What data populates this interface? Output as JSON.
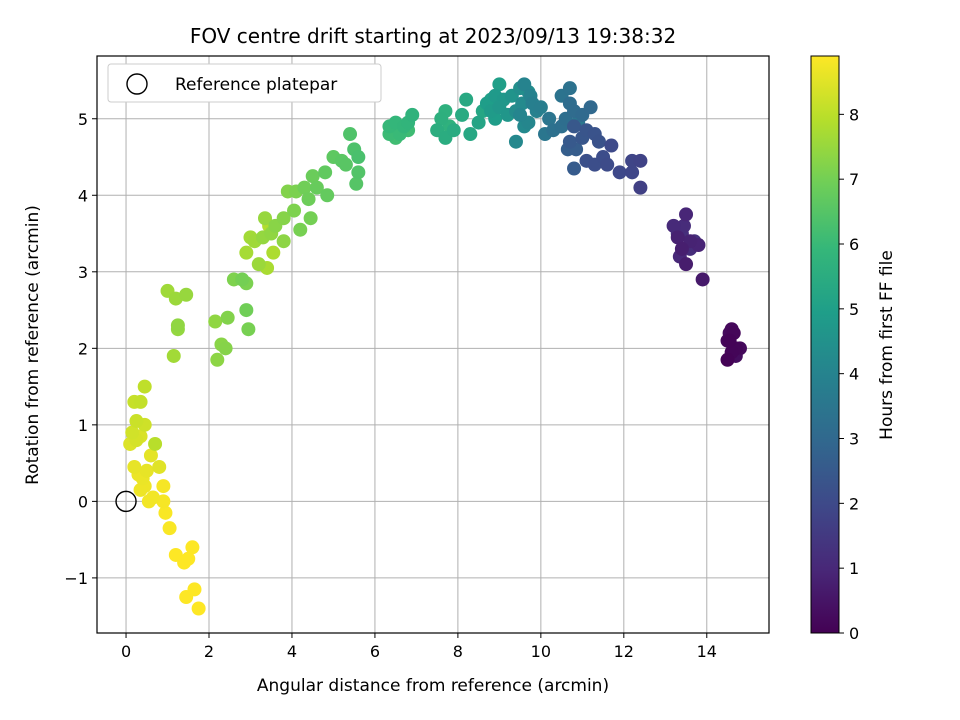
{
  "chart_data": {
    "type": "scatter",
    "title": "FOV centre drift starting at 2023/09/13 19:38:32",
    "xlabel": "Angular distance from reference (arcmin)",
    "ylabel": "Rotation from reference (arcmin)",
    "xlim": [
      -0.7,
      15.5
    ],
    "ylim": [
      -1.72,
      5.82
    ],
    "xticks": [
      0,
      2,
      4,
      6,
      8,
      10,
      12,
      14
    ],
    "yticks": [
      -1,
      0,
      1,
      2,
      3,
      4,
      5
    ],
    "grid": true,
    "legend": {
      "position": "upper-left",
      "entries": [
        "Reference platepar"
      ]
    },
    "reference_point": {
      "x": 0,
      "y": 0,
      "label": "Reference platepar"
    },
    "colorbar": {
      "label": "Hours from first FF file",
      "colormap": "viridis",
      "range": [
        0,
        8.9
      ],
      "ticks": [
        0,
        1,
        2,
        3,
        4,
        5,
        6,
        7,
        8
      ]
    },
    "colormap_stops": [
      "#440154",
      "#482878",
      "#3e4989",
      "#31688e",
      "#26828e",
      "#1f9e89",
      "#35b779",
      "#6ece58",
      "#b5de2b",
      "#fde725"
    ],
    "series": [
      {
        "points": [
          [
            14.5,
            1.85,
            0.05
          ],
          [
            14.6,
            1.95,
            0.1
          ],
          [
            14.7,
            2.0,
            0.12
          ],
          [
            14.65,
            2.2,
            0.15
          ],
          [
            14.55,
            2.1,
            0.08
          ],
          [
            14.5,
            2.1,
            0.18
          ],
          [
            14.6,
            2.25,
            0.2
          ],
          [
            14.8,
            2.0,
            0.22
          ],
          [
            14.55,
            2.2,
            0.25
          ],
          [
            14.7,
            1.9,
            0.3
          ],
          [
            13.9,
            2.9,
            0.6
          ],
          [
            13.5,
            3.1,
            0.7
          ],
          [
            13.4,
            3.3,
            0.75
          ],
          [
            13.3,
            3.45,
            0.8
          ],
          [
            13.6,
            3.4,
            0.85
          ],
          [
            13.8,
            3.35,
            0.9
          ],
          [
            13.5,
            3.75,
            0.95
          ],
          [
            13.35,
            3.2,
            1.0
          ],
          [
            13.2,
            3.6,
            1.05
          ],
          [
            13.45,
            3.6,
            1.1
          ],
          [
            13.6,
            3.3,
            1.15
          ],
          [
            13.4,
            3.5,
            1.2
          ],
          [
            13.7,
            3.4,
            1.25
          ],
          [
            13.3,
            3.5,
            1.3
          ],
          [
            12.4,
            4.1,
            1.7
          ],
          [
            12.4,
            4.45,
            1.8
          ],
          [
            12.2,
            4.45,
            1.85
          ],
          [
            12.2,
            4.3,
            1.9
          ],
          [
            11.9,
            4.3,
            1.95
          ],
          [
            11.7,
            4.65,
            2.0
          ],
          [
            11.6,
            4.4,
            2.05
          ],
          [
            11.5,
            4.5,
            2.1
          ],
          [
            11.3,
            4.4,
            2.15
          ],
          [
            11.1,
            4.45,
            2.2
          ],
          [
            11.4,
            4.7,
            2.25
          ],
          [
            11.3,
            4.8,
            2.3
          ],
          [
            11.1,
            4.85,
            2.35
          ],
          [
            11.0,
            4.75,
            2.4
          ],
          [
            10.8,
            4.9,
            2.45
          ],
          [
            10.7,
            4.7,
            2.5
          ],
          [
            10.8,
            4.35,
            2.55
          ],
          [
            10.85,
            4.6,
            2.6
          ],
          [
            10.65,
            4.6,
            2.65
          ],
          [
            11.2,
            5.15,
            3.0
          ],
          [
            11.0,
            5.05,
            3.05
          ],
          [
            10.8,
            5.1,
            3.1
          ],
          [
            10.7,
            5.2,
            3.15
          ],
          [
            10.6,
            5.0,
            3.2
          ],
          [
            10.5,
            4.9,
            3.25
          ],
          [
            10.3,
            4.85,
            3.3
          ],
          [
            10.7,
            5.4,
            3.35
          ],
          [
            10.5,
            5.3,
            3.4
          ],
          [
            10.2,
            5.0,
            3.45
          ],
          [
            10.1,
            4.8,
            3.5
          ],
          [
            10.9,
            4.95,
            3.55
          ],
          [
            10.0,
            5.15,
            3.8
          ],
          [
            9.8,
            5.2,
            3.85
          ],
          [
            9.9,
            5.1,
            3.9
          ],
          [
            9.75,
            5.3,
            3.95
          ],
          [
            9.6,
            5.45,
            4.0
          ],
          [
            9.5,
            5.05,
            4.05
          ],
          [
            9.7,
            4.95,
            4.1
          ],
          [
            9.4,
            4.7,
            4.15
          ],
          [
            9.6,
            4.9,
            4.2
          ],
          [
            9.55,
            5.2,
            4.25
          ],
          [
            9.4,
            5.1,
            4.3
          ],
          [
            9.7,
            5.35,
            4.35
          ],
          [
            9.5,
            5.4,
            4.4
          ],
          [
            9.3,
            5.3,
            4.6
          ],
          [
            9.2,
            5.05,
            4.65
          ],
          [
            9.0,
            5.15,
            4.7
          ],
          [
            9.1,
            5.25,
            4.75
          ],
          [
            8.9,
            5.3,
            4.8
          ],
          [
            8.8,
            5.1,
            4.85
          ],
          [
            8.9,
            5.0,
            4.9
          ],
          [
            8.7,
            5.2,
            4.95
          ],
          [
            9.0,
            5.45,
            5.0
          ],
          [
            8.8,
            5.25,
            5.05
          ],
          [
            8.5,
            4.95,
            5.2
          ],
          [
            8.6,
            5.1,
            5.25
          ],
          [
            8.3,
            4.8,
            5.3
          ],
          [
            8.2,
            5.25,
            5.35
          ],
          [
            8.1,
            5.05,
            5.4
          ],
          [
            7.9,
            4.85,
            5.45
          ],
          [
            7.7,
            4.75,
            5.5
          ],
          [
            7.5,
            4.85,
            5.55
          ],
          [
            7.6,
            5.0,
            5.6
          ],
          [
            7.7,
            5.1,
            5.65
          ],
          [
            7.8,
            4.9,
            5.7
          ],
          [
            6.9,
            5.05,
            5.75
          ],
          [
            6.8,
            4.95,
            5.8
          ],
          [
            6.7,
            4.9,
            5.85
          ],
          [
            6.5,
            4.95,
            5.9
          ],
          [
            6.35,
            4.9,
            5.95
          ],
          [
            6.6,
            4.8,
            6.0
          ],
          [
            6.35,
            4.8,
            6.05
          ],
          [
            6.8,
            4.85,
            6.1
          ],
          [
            6.5,
            4.75,
            6.15
          ],
          [
            5.6,
            4.5,
            6.3
          ],
          [
            5.5,
            4.6,
            6.35
          ],
          [
            5.4,
            4.8,
            6.4
          ],
          [
            5.6,
            4.3,
            6.45
          ],
          [
            5.55,
            4.15,
            6.5
          ],
          [
            5.3,
            4.4,
            6.55
          ],
          [
            5.2,
            4.45,
            6.6
          ],
          [
            5.0,
            4.5,
            6.65
          ],
          [
            4.8,
            4.3,
            6.7
          ],
          [
            4.85,
            4.0,
            6.75
          ],
          [
            4.6,
            4.1,
            6.8
          ],
          [
            4.5,
            4.25,
            6.85
          ],
          [
            4.4,
            3.95,
            6.9
          ],
          [
            4.3,
            4.1,
            6.95
          ],
          [
            4.45,
            3.7,
            7.0
          ],
          [
            4.2,
            3.55,
            7.05
          ],
          [
            4.1,
            4.05,
            7.1
          ],
          [
            4.05,
            3.8,
            7.15
          ],
          [
            3.9,
            4.05,
            7.2
          ],
          [
            3.8,
            3.7,
            7.25
          ],
          [
            3.6,
            3.6,
            7.3
          ],
          [
            3.8,
            3.4,
            7.35
          ],
          [
            3.5,
            3.5,
            7.4
          ],
          [
            3.3,
            3.45,
            7.45
          ],
          [
            3.35,
            3.7,
            7.5
          ],
          [
            3.2,
            3.1,
            7.55
          ],
          [
            3.1,
            3.4,
            7.6
          ],
          [
            3.0,
            3.45,
            7.65
          ],
          [
            2.9,
            3.25,
            7.7
          ],
          [
            3.4,
            3.05,
            7.75
          ],
          [
            3.55,
            3.25,
            7.8
          ],
          [
            3.45,
            3.6,
            7.85
          ],
          [
            2.8,
            2.9,
            7.0
          ],
          [
            2.9,
            2.5,
            6.95
          ],
          [
            2.95,
            2.25,
            7.05
          ],
          [
            2.9,
            2.85,
            7.1
          ],
          [
            2.6,
            2.9,
            7.15
          ],
          [
            2.45,
            2.4,
            7.2
          ],
          [
            2.4,
            2.0,
            7.25
          ],
          [
            2.3,
            2.05,
            7.3
          ],
          [
            2.2,
            1.85,
            7.35
          ],
          [
            2.15,
            2.35,
            7.4
          ],
          [
            1.25,
            2.3,
            7.4
          ],
          [
            1.25,
            2.25,
            7.45
          ],
          [
            1.45,
            2.7,
            7.5
          ],
          [
            1.2,
            2.65,
            7.55
          ],
          [
            1.0,
            2.75,
            7.6
          ],
          [
            1.15,
            1.9,
            7.65
          ],
          [
            0.7,
            0.75,
            7.95
          ],
          [
            0.45,
            1.5,
            8.05
          ],
          [
            0.35,
            1.3,
            8.1
          ],
          [
            0.2,
            1.3,
            8.15
          ],
          [
            0.25,
            1.05,
            8.2
          ],
          [
            0.45,
            1.0,
            8.25
          ],
          [
            0.15,
            0.9,
            8.3
          ],
          [
            0.25,
            0.8,
            8.35
          ],
          [
            0.35,
            0.85,
            8.4
          ],
          [
            0.1,
            0.75,
            8.45
          ],
          [
            0.8,
            0.45,
            8.5
          ],
          [
            0.6,
            0.6,
            8.55
          ],
          [
            0.5,
            0.4,
            8.6
          ],
          [
            0.4,
            0.3,
            8.65
          ],
          [
            0.2,
            0.45,
            8.6
          ],
          [
            0.3,
            0.35,
            8.65
          ],
          [
            0.45,
            0.2,
            8.7
          ],
          [
            0.35,
            0.15,
            8.7
          ],
          [
            0.55,
            0.0,
            8.75
          ],
          [
            0.65,
            0.05,
            8.75
          ],
          [
            0.9,
            0.2,
            8.8
          ],
          [
            0.9,
            0.0,
            8.8
          ],
          [
            0.95,
            -0.15,
            8.85
          ],
          [
            1.05,
            -0.35,
            8.85
          ],
          [
            1.2,
            -0.7,
            8.9
          ],
          [
            1.4,
            -0.8,
            8.9
          ],
          [
            1.5,
            -0.75,
            8.9
          ],
          [
            1.6,
            -0.6,
            8.9
          ],
          [
            1.45,
            -1.25,
            8.9
          ],
          [
            1.65,
            -1.15,
            8.9
          ],
          [
            1.75,
            -1.4,
            8.9
          ]
        ]
      }
    ]
  }
}
